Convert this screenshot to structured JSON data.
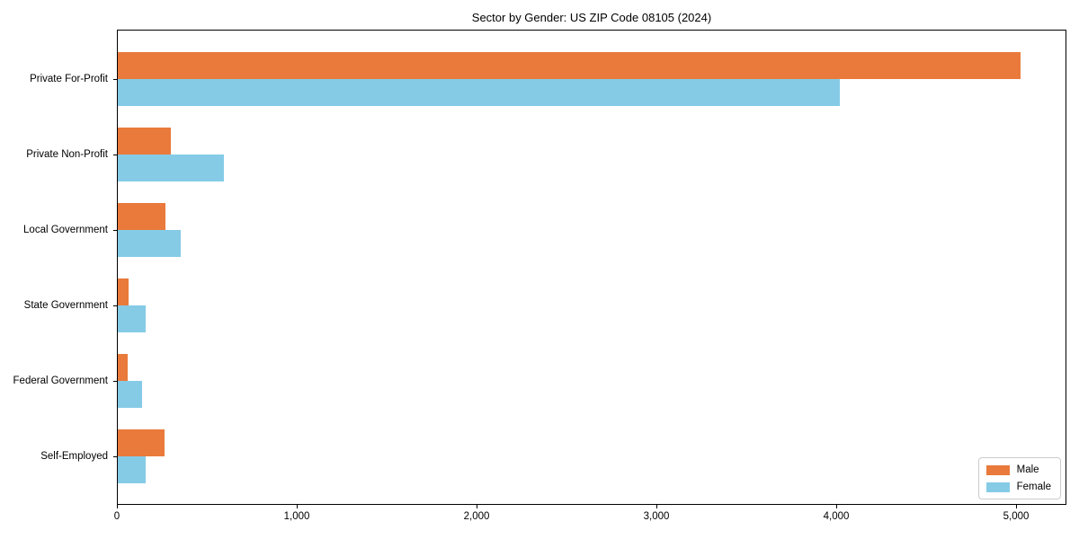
{
  "chart_data": {
    "type": "bar",
    "orientation": "horizontal",
    "title": "Sector by Gender: US ZIP Code 08105 (2024)",
    "categories": [
      "Private For-Profit",
      "Private Non-Profit",
      "Local Government",
      "State Government",
      "Federal Government",
      "Self-Employed"
    ],
    "series": [
      {
        "name": "Male",
        "color": "#e97a3b",
        "values": [
          5025,
          300,
          270,
          65,
          58,
          265
        ]
      },
      {
        "name": "Female",
        "color": "#85cbe6",
        "values": [
          4020,
          595,
          355,
          158,
          138,
          162
        ]
      }
    ],
    "xlabel": "",
    "ylabel": "",
    "xlim": [
      0,
      5280
    ],
    "xticks": [
      0,
      1000,
      2000,
      3000,
      4000,
      5000
    ],
    "xtick_labels": [
      "0",
      "1,000",
      "2,000",
      "3,000",
      "4,000",
      "5,000"
    ],
    "grid": false,
    "legend_position": "lower right",
    "colors": {
      "male": "#e97a3b",
      "female": "#85cbe6",
      "spine": "#000000",
      "background": "#ffffff"
    }
  }
}
